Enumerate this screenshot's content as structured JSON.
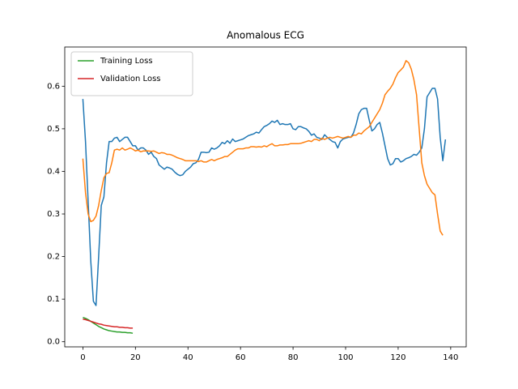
{
  "chart_data": {
    "type": "line",
    "title": "Anomalous ECG",
    "xlim": [
      -6.9,
      145.9
    ],
    "xticks": [
      0,
      20,
      40,
      60,
      80,
      100,
      120,
      140
    ],
    "ylim": [
      -0.012,
      0.692
    ],
    "yticks": [
      {
        "value": 0,
        "label": "0.0"
      },
      0.1,
      0.2,
      0.3,
      0.4,
      0.5,
      0.6
    ],
    "legend": "upper left",
    "series": [
      {
        "color": "#1f77b4",
        "values": [
          0.57,
          0.47,
          0.33,
          0.19,
          0.095,
          0.085,
          0.2,
          0.32,
          0.34,
          0.42,
          0.47,
          0.47,
          0.478,
          0.48,
          0.47,
          0.475,
          0.48,
          0.48,
          0.47,
          0.46,
          0.46,
          0.45,
          0.455,
          0.455,
          0.45,
          0.44,
          0.445,
          0.435,
          0.43,
          0.415,
          0.41,
          0.405,
          0.41,
          0.408,
          0.405,
          0.398,
          0.393,
          0.39,
          0.392,
          0.4,
          0.405,
          0.41,
          0.418,
          0.42,
          0.428,
          0.445,
          0.445,
          0.444,
          0.445,
          0.455,
          0.452,
          0.455,
          0.46,
          0.468,
          0.465,
          0.472,
          0.466,
          0.476,
          0.47,
          0.472,
          0.474,
          0.476,
          0.48,
          0.484,
          0.486,
          0.488,
          0.492,
          0.49,
          0.498,
          0.505,
          0.508,
          0.512,
          0.518,
          0.515,
          0.52,
          0.51,
          0.512,
          0.51,
          0.51,
          0.512,
          0.5,
          0.498,
          0.505,
          0.505,
          0.502,
          0.5,
          0.494,
          0.485,
          0.488,
          0.48,
          0.478,
          0.475,
          0.486,
          0.48,
          0.475,
          0.47,
          0.468,
          0.455,
          0.47,
          0.476,
          0.478,
          0.48,
          0.48,
          0.49,
          0.51,
          0.535,
          0.545,
          0.548,
          0.548,
          0.52,
          0.495,
          0.5,
          0.51,
          0.515,
          0.49,
          0.46,
          0.43,
          0.415,
          0.418,
          0.43,
          0.43,
          0.422,
          0.425,
          0.43,
          0.432,
          0.435,
          0.44,
          0.438,
          0.445,
          0.455,
          0.5,
          0.575,
          0.585,
          0.595,
          0.595,
          0.57,
          0.48,
          0.425,
          0.475
        ]
      },
      {
        "color": "#ff7f0e",
        "values": [
          0.43,
          0.35,
          0.3,
          0.282,
          0.285,
          0.295,
          0.32,
          0.355,
          0.385,
          0.395,
          0.397,
          0.42,
          0.45,
          0.452,
          0.45,
          0.455,
          0.45,
          0.452,
          0.455,
          0.452,
          0.448,
          0.45,
          0.446,
          0.448,
          0.448,
          0.448,
          0.447,
          0.448,
          0.445,
          0.442,
          0.444,
          0.443,
          0.44,
          0.44,
          0.438,
          0.435,
          0.432,
          0.43,
          0.428,
          0.425,
          0.425,
          0.425,
          0.425,
          0.425,
          0.423,
          0.425,
          0.422,
          0.422,
          0.425,
          0.428,
          0.425,
          0.428,
          0.43,
          0.432,
          0.435,
          0.435,
          0.44,
          0.445,
          0.45,
          0.453,
          0.453,
          0.453,
          0.455,
          0.455,
          0.458,
          0.458,
          0.457,
          0.458,
          0.457,
          0.46,
          0.458,
          0.462,
          0.465,
          0.46,
          0.46,
          0.462,
          0.462,
          0.463,
          0.463,
          0.465,
          0.465,
          0.465,
          0.465,
          0.466,
          0.468,
          0.47,
          0.472,
          0.47,
          0.475,
          0.475,
          0.472,
          0.478,
          0.475,
          0.478,
          0.48,
          0.478,
          0.48,
          0.482,
          0.48,
          0.478,
          0.48,
          0.482,
          0.48,
          0.485,
          0.485,
          0.49,
          0.488,
          0.495,
          0.5,
          0.505,
          0.515,
          0.525,
          0.535,
          0.545,
          0.56,
          0.58,
          0.588,
          0.595,
          0.605,
          0.62,
          0.632,
          0.638,
          0.645,
          0.66,
          0.655,
          0.64,
          0.615,
          0.58,
          0.5,
          0.42,
          0.39,
          0.37,
          0.36,
          0.35,
          0.345,
          0.3,
          0.26,
          0.25
        ]
      },
      {
        "name": "Training Loss",
        "color": "#2ca02c",
        "values": [
          0.057,
          0.055,
          0.052,
          0.048,
          0.044,
          0.04,
          0.036,
          0.033,
          0.03,
          0.028,
          0.026,
          0.025,
          0.024,
          0.023,
          0.023,
          0.022,
          0.022,
          0.021,
          0.021,
          0.02
        ]
      },
      {
        "name": "Validation Loss",
        "color": "#d62728",
        "values": [
          0.053,
          0.052,
          0.05,
          0.048,
          0.046,
          0.044,
          0.042,
          0.041,
          0.039,
          0.038,
          0.037,
          0.036,
          0.035,
          0.035,
          0.034,
          0.034,
          0.033,
          0.033,
          0.032,
          0.032
        ]
      }
    ]
  }
}
